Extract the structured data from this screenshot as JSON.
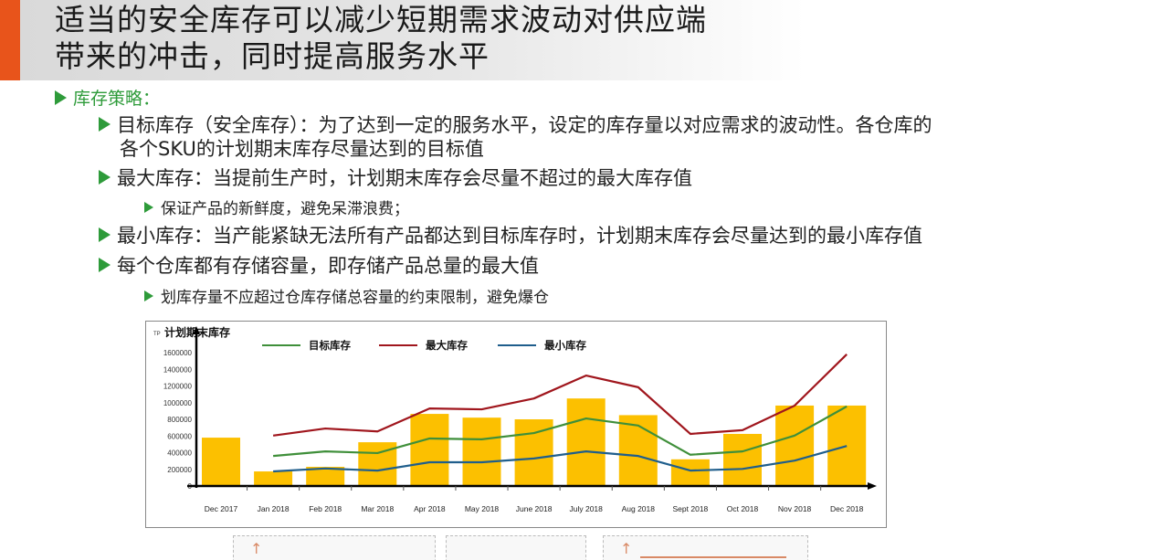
{
  "slide": {
    "title_lines": [
      "适当的安全库存可以减少短期需求波动对供应端",
      "带来的冲击，同时提高服务水平"
    ],
    "accent_color": "#e8541b",
    "bullet_color": "#2e9b3a"
  },
  "content": {
    "heading": "库存策略：",
    "items": [
      {
        "level": 1,
        "text": "目标库存（安全库存）：为了达到一定的服务水平，设定的库存量以对应需求的波动性。各仓库的"
      },
      {
        "level": 1,
        "text": "各个SKU的计划期末库存尽量达到的目标值",
        "continuation": true
      },
      {
        "level": 1,
        "text": "最大库存：当提前生产时，计划期末库存会尽量不超过的最大库存值"
      },
      {
        "level": 2,
        "text": "保证产品的新鲜度，避免呆滞浪费；"
      },
      {
        "level": 1,
        "text": "最小库存：当产能紧缺无法所有产品都达到目标库存时，计划期末库存会尽量达到的最小库存值"
      },
      {
        "level": 1,
        "text": "每个仓库都有存储容量，即存储产品总量的最大值"
      },
      {
        "level": 2,
        "text": "划库存量不应超过仓库存储总容量的约束限制，避免爆仓"
      }
    ]
  },
  "chart_data": {
    "type": "bar",
    "title": "计划期末库存",
    "unit_label": "TP",
    "xlabel": "",
    "ylabel": "计划期末库存",
    "ylim": [
      0,
      1600000
    ],
    "yticks": [
      0,
      200000,
      400000,
      600000,
      800000,
      1000000,
      1200000,
      1400000,
      1600000
    ],
    "ytick_labels": [
      "0",
      "200000",
      "400000",
      "600000",
      "800000",
      "1000000",
      "1200000",
      "1400000",
      "1600000"
    ],
    "grid": false,
    "legend_position": "top",
    "categories": [
      "Dec 2017",
      "Jan 2018",
      "Feb 2018",
      "Mar 2018",
      "Apr 2018",
      "May 2018",
      "June 2018",
      "July 2018",
      "Aug 2018",
      "Sept 2018",
      "Oct 2018",
      "Nov 2018",
      "Dec 2018"
    ],
    "series": [
      {
        "name": "计划期末库存",
        "type": "bar",
        "color": "#fcc000",
        "values": [
          580000,
          175000,
          230000,
          525000,
          865000,
          820000,
          800000,
          1050000,
          850000,
          320000,
          625000,
          965000,
          965000
        ]
      },
      {
        "name": "目标库存",
        "type": "line",
        "color": "#3f8f3a",
        "values": [
          null,
          360000,
          415000,
          395000,
          570000,
          560000,
          635000,
          810000,
          725000,
          375000,
          415000,
          605000,
          955000
        ]
      },
      {
        "name": "最大库存",
        "type": "line",
        "color": "#a0161d",
        "values": [
          null,
          605000,
          690000,
          655000,
          930000,
          920000,
          1050000,
          1325000,
          1185000,
          625000,
          670000,
          965000,
          1580000
        ]
      },
      {
        "name": "最小库存",
        "type": "line",
        "color": "#1f5e8c",
        "values": [
          null,
          175000,
          210000,
          185000,
          285000,
          285000,
          330000,
          415000,
          360000,
          185000,
          205000,
          305000,
          480000
        ]
      }
    ],
    "legend": [
      "目标库存",
      "最大库存",
      "最小库存"
    ]
  },
  "below_chart": {
    "panels": 3
  }
}
